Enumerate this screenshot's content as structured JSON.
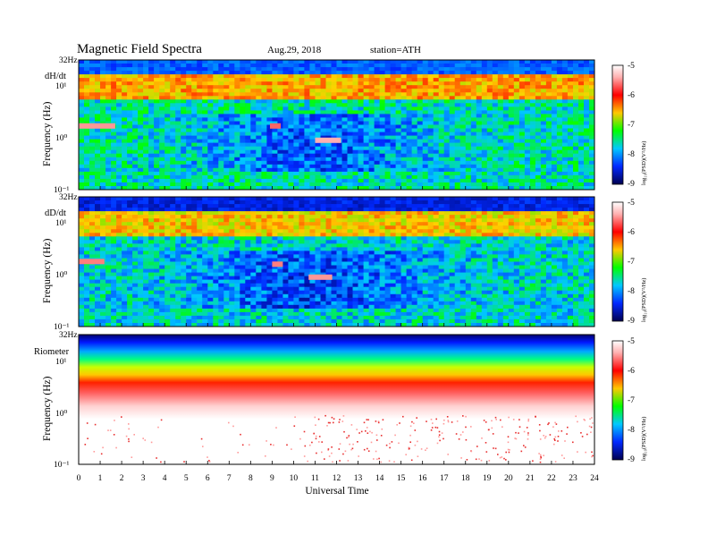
{
  "header": {
    "title": "Magnetic Field Spectra",
    "date": "Aug.29, 2018",
    "station": "station=ATH"
  },
  "chart_data": [
    {
      "type": "heatmap",
      "panel_label": "dH/dt",
      "ylabel": "Frequency (Hz)",
      "y_scale": "log",
      "ylim": [
        0.1,
        32
      ],
      "y_ticks": [
        "32Hz",
        "10¹",
        "10⁰",
        "10⁻¹"
      ],
      "xlim": [
        0,
        24
      ],
      "colorbar": {
        "label": "log₁₀(PSD)(V²/Hz)",
        "ticks": [
          "-5",
          "-6",
          "-7",
          "-8",
          "-9"
        ],
        "range": [
          -9,
          -5
        ]
      },
      "features": {
        "band_top_level": -8.4,
        "band_mid_level": -6.7,
        "background_level": -7.8,
        "lines": [
          {
            "t_start": 0,
            "t_end": 1.7,
            "freq": 1.7,
            "level": -5.7
          },
          {
            "t_start": 8.9,
            "t_end": 9.4,
            "freq": 1.7,
            "level": -5.9
          },
          {
            "t_start": 11.0,
            "t_end": 12.2,
            "freq": 0.9,
            "level": -5.6
          }
        ]
      }
    },
    {
      "type": "heatmap",
      "panel_label": "dD/dt",
      "ylabel": "Frequency (Hz)",
      "y_scale": "log",
      "ylim": [
        0.1,
        32
      ],
      "y_ticks": [
        "32Hz",
        "10¹",
        "10⁰",
        "10⁻¹"
      ],
      "xlim": [
        0,
        24
      ],
      "colorbar": {
        "label": "log₁₀(PSD)(V²/Hz)",
        "ticks": [
          "-5",
          "-6",
          "-7",
          "-8",
          "-9"
        ],
        "range": [
          -9,
          -5
        ]
      },
      "features": {
        "band_top_level": -8.7,
        "band_mid_level": -6.8,
        "background_level": -7.9,
        "lines": [
          {
            "t_start": 0,
            "t_end": 1.2,
            "freq": 1.8,
            "level": -5.8
          },
          {
            "t_start": 9.0,
            "t_end": 9.5,
            "freq": 1.6,
            "level": -5.8
          },
          {
            "t_start": 10.7,
            "t_end": 11.8,
            "freq": 0.9,
            "level": -5.7
          }
        ]
      }
    },
    {
      "type": "heatmap",
      "panel_label": "Riometer",
      "ylabel": "Frequency (Hz)",
      "y_scale": "log",
      "ylim": [
        0.1,
        32
      ],
      "y_ticks": [
        "32Hz",
        "10¹",
        "10⁰",
        "10⁻¹"
      ],
      "xlim": [
        0,
        24
      ],
      "xlabel": "Universal Time",
      "x_ticks": [
        "0",
        "1",
        "2",
        "3",
        "4",
        "5",
        "6",
        "7",
        "8",
        "9",
        "10",
        "11",
        "12",
        "13",
        "14",
        "15",
        "16",
        "17",
        "18",
        "19",
        "20",
        "21",
        "22",
        "23",
        "24"
      ],
      "colorbar": {
        "label": "log₁₀(PSD)(V²/Hz)",
        "ticks": [
          "-5",
          "-6",
          "-7",
          "-8",
          "-9"
        ],
        "range": [
          -9,
          -5
        ]
      },
      "features": {
        "gradient": "blue (high freq) to red (~3 Hz), white below"
      }
    }
  ],
  "colors": {
    "scale": [
      "#ffffff",
      "#ff0000",
      "#ffd200",
      "#00ff00",
      "#00c8ff",
      "#0028ff",
      "#00006e"
    ]
  }
}
